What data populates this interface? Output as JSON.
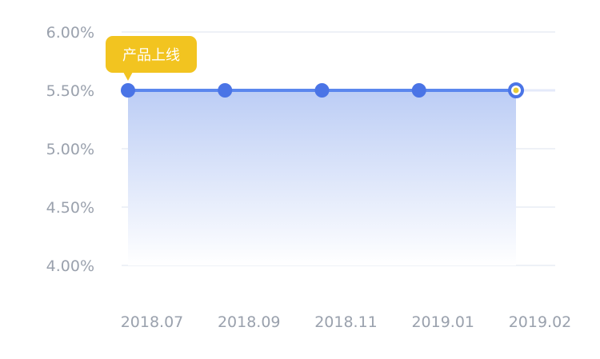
{
  "colors": {
    "line": "#5b87ee",
    "point": "#4a74e6",
    "point_last_center": "#e8cc38",
    "callout_bg": "#f2c420",
    "tick_text": "#9aa1ad",
    "grid": "#eef1f7",
    "area_top": "#bccdf5",
    "area_bottom": "#ffffff"
  },
  "annotation": {
    "text": "产品上线",
    "at_index": 0
  },
  "chart_data": {
    "type": "area",
    "x": [
      "2018.07",
      "2018.09",
      "2018.11",
      "2019.01",
      "2019.02"
    ],
    "series": [
      {
        "values": [
          5.5,
          5.5,
          5.5,
          5.5,
          5.5
        ]
      }
    ],
    "yticks": [
      "4.00%",
      "4.50%",
      "5.00%",
      "5.50%",
      "6.00%"
    ],
    "ytick_values": [
      4.0,
      4.5,
      5.0,
      5.5,
      6.0
    ],
    "ylim": [
      4.0,
      6.0
    ],
    "grid": true,
    "legend": "none"
  }
}
